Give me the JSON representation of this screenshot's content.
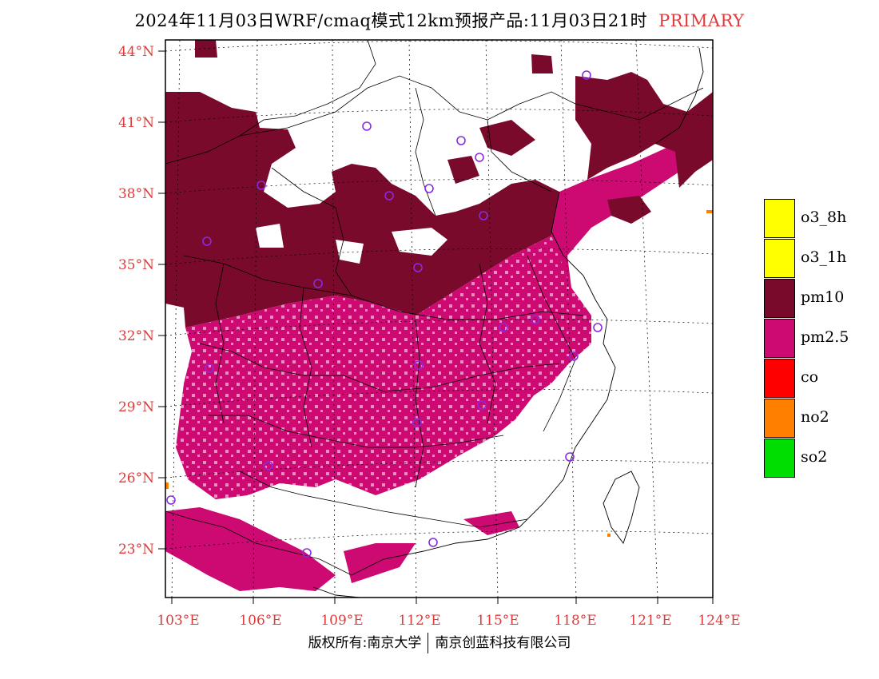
{
  "title": {
    "main": "2024年11月03日WRF/cmaq模式12km预报产品:11月03日21时",
    "badge": "PRIMARY"
  },
  "map": {
    "lat_labels": [
      "44°N",
      "41°N",
      "38°N",
      "35°N",
      "32°N",
      "29°N",
      "26°N",
      "23°N"
    ],
    "lon_labels": [
      "103°E",
      "106°E",
      "109°E",
      "112°E",
      "115°E",
      "118°E",
      "121°E",
      "124°E"
    ],
    "colors": {
      "pm10": "#7a0a2c",
      "pm25": "#cc0a72",
      "no2": "#ff8000",
      "border": "#000000",
      "grid": "#000000",
      "city_marker": "#8a2be2",
      "axis_label": "#e03a3a"
    }
  },
  "legend": {
    "items": [
      {
        "label": "o3_8h",
        "color": "#ffff00"
      },
      {
        "label": "o3_1h",
        "color": "#ffff00"
      },
      {
        "label": "pm10",
        "color": "#7a0a2c"
      },
      {
        "label": "pm2.5",
        "color": "#cc0a72"
      },
      {
        "label": "co",
        "color": "#ff0000"
      },
      {
        "label": "no2",
        "color": "#ff8000"
      },
      {
        "label": "so2",
        "color": "#00dd00"
      }
    ]
  },
  "footer": {
    "left": "版权所有:南京大学",
    "right": "南京创蓝科技有限公司"
  }
}
